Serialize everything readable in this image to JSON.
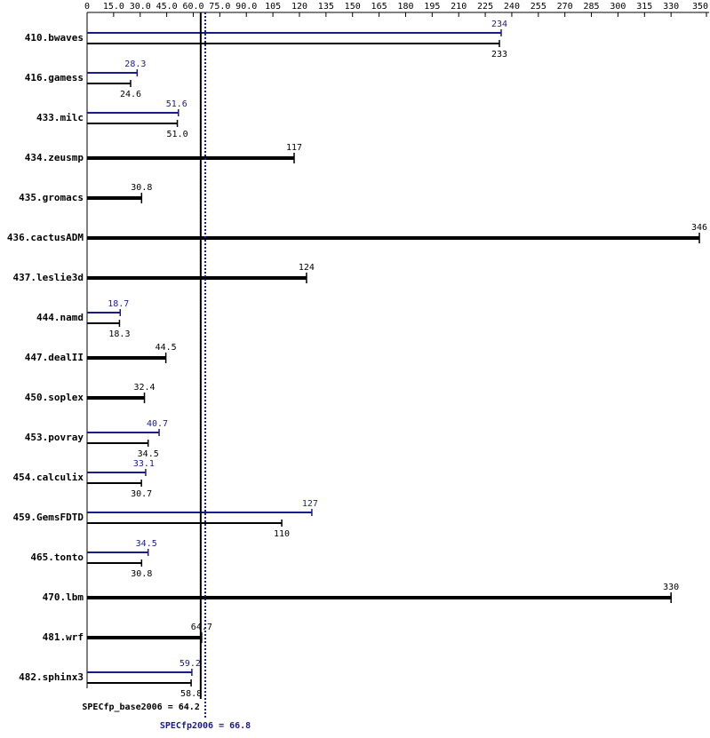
{
  "chart_data": {
    "type": "bar",
    "orientation": "horizontal",
    "categories": [
      "410.bwaves",
      "416.gamess",
      "433.milc",
      "434.zeusmp",
      "435.gromacs",
      "436.cactusADM",
      "437.leslie3d",
      "444.namd",
      "447.dealII",
      "450.soplex",
      "453.povray",
      "454.calculix",
      "459.GemsFDTD",
      "465.tonto",
      "470.lbm",
      "481.wrf",
      "482.sphinx3"
    ],
    "series": [
      {
        "color": "#1a1a8c",
        "values": [
          234,
          28.3,
          51.6,
          null,
          null,
          null,
          null,
          18.7,
          null,
          null,
          40.7,
          33.1,
          127,
          34.5,
          null,
          null,
          59.2
        ]
      },
      {
        "color": "#000000",
        "values": [
          233,
          24.6,
          51.0,
          117,
          30.8,
          346,
          124,
          18.3,
          44.5,
          32.4,
          34.5,
          30.7,
          110,
          30.8,
          330,
          64.7,
          58.8
        ],
        "value_labels": [
          "233",
          "24.6",
          "51.0",
          "117",
          "30.8",
          "346",
          "124",
          "18.3",
          "44.5",
          "32.4",
          "34.5",
          "30.7",
          "110",
          "30.8",
          "330",
          "64.7",
          "58.8"
        ]
      }
    ],
    "xlim": [
      0,
      350
    ],
    "xticks": [
      0,
      {
        "value": 15,
        "label": "15.0"
      },
      {
        "value": 30,
        "label": "30.0"
      },
      {
        "value": 45,
        "label": "45.0"
      },
      {
        "value": 60,
        "label": "60.0"
      },
      {
        "value": 75,
        "label": "75.0"
      },
      {
        "value": 90,
        "label": "90.0"
      },
      105,
      120,
      135,
      150,
      165,
      180,
      195,
      210,
      225,
      240,
      255,
      270,
      285,
      300,
      315,
      330,
      350
    ],
    "reference_lines": [
      {
        "label": "SPECfp_base2006 = 64.2",
        "value": 64.2,
        "color": "#000000",
        "style": "solid"
      },
      {
        "label": "SPECfp2006 = 66.8",
        "value": 66.8,
        "color": "#1a1a8c",
        "style": "dotted"
      }
    ]
  }
}
